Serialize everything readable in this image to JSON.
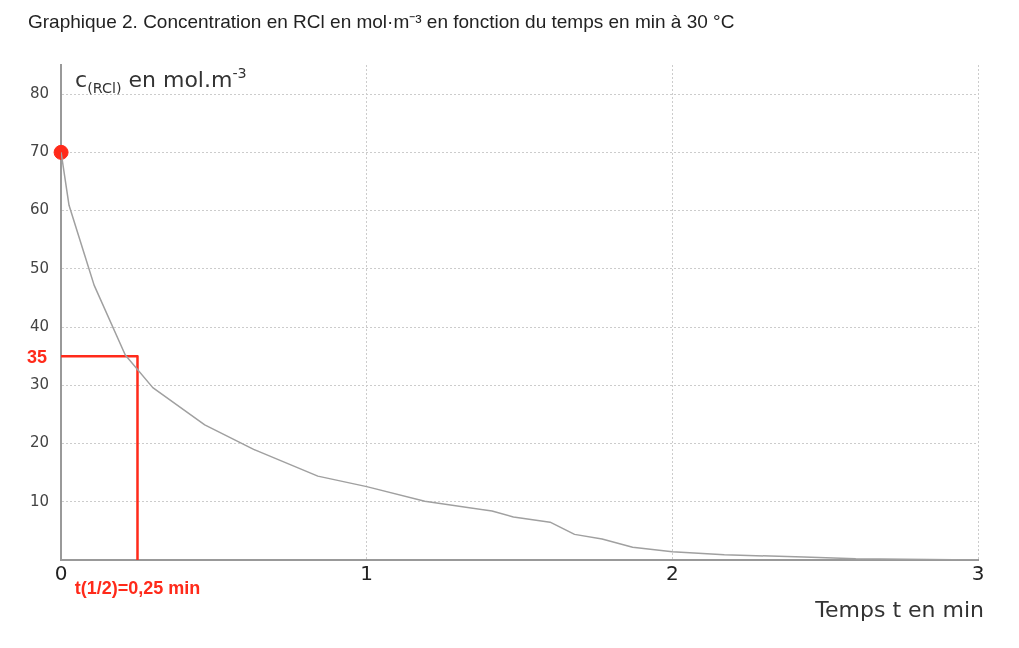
{
  "chart_data": {
    "type": "line",
    "title": "Graphique 2. Concentration en RCl en mol·m⁻³ en fonction du temps en min à 30 °C",
    "xlabel": "Temps t en min",
    "ylabel": "c$_{(RCl)}$ en mol.m$^{-3}$",
    "xlim": [
      0,
      3
    ],
    "xticks": [
      0,
      1,
      2,
      3
    ],
    "ylim": [
      0,
      85
    ],
    "yticks": [
      10,
      20,
      30,
      40,
      50,
      60,
      70,
      80
    ],
    "grid": true,
    "series": [
      {
        "type": "line",
        "color": "#a0a0a0",
        "marker": "none",
        "x": [
          0,
          0.026,
          0.108,
          0.21,
          0.3,
          0.47,
          0.63,
          0.84,
          1.0,
          1.19,
          1.41,
          1.48,
          1.6,
          1.68,
          1.77,
          1.87,
          2.0,
          2.17,
          2.43,
          2.6,
          3
        ],
        "values": [
          70,
          60.9,
          47.2,
          35.2,
          29.6,
          23.2,
          19,
          14.4,
          12.6,
          10.1,
          8.4,
          7.4,
          6.5,
          4.4,
          3.6,
          2.2,
          1.4,
          0.9,
          0.5,
          0.2,
          0
        ]
      },
      {
        "type": "line",
        "color": "#ff2a1a",
        "marker": "none",
        "x": [
          0,
          0.25,
          0.25
        ],
        "values": [
          35,
          35,
          0
        ]
      },
      {
        "type": "scatter",
        "color": "#ff2a1a",
        "marker": "circle",
        "x": [
          0
        ],
        "values": [
          70
        ]
      }
    ],
    "annotations": [
      {
        "text": "35",
        "x": 0,
        "y": 35
      },
      {
        "text": "t(1/2)=0,25 min",
        "x": 0.25,
        "y": 0
      }
    ]
  }
}
